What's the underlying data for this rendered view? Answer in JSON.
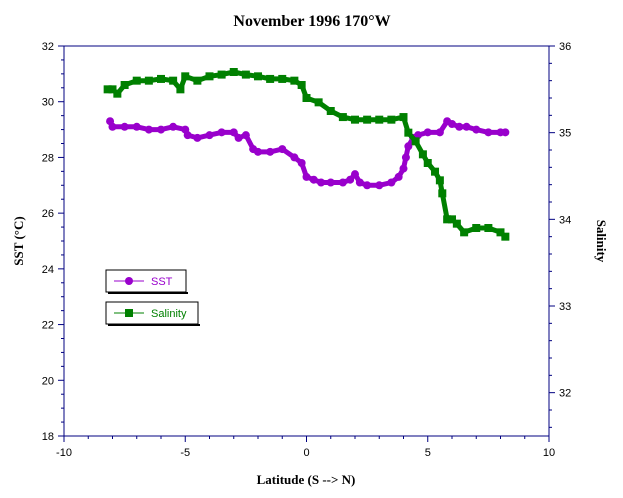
{
  "chart_data": {
    "type": "line",
    "title": "November 1996 170°W",
    "xlabel": "Latitude (S --> N)",
    "ylabel_left": "SST (°C)",
    "ylabel_right": "Salinity",
    "xlim": [
      -10,
      10
    ],
    "ylim_left": [
      18,
      32
    ],
    "ylim_right": [
      31.5,
      36
    ],
    "x_ticks": [
      "-10",
      "-5",
      "0",
      "5",
      "10"
    ],
    "y_ticks_left": [
      "18",
      "20",
      "22",
      "24",
      "26",
      "28",
      "30",
      "32"
    ],
    "y_ticks_right": [
      "32",
      "33",
      "34",
      "35",
      "36"
    ],
    "colors": {
      "sst": "#9900cc",
      "salinity": "#008000",
      "axis": "#000080"
    },
    "series": [
      {
        "name": "SST",
        "axis": "left",
        "x": [
          -8.1,
          -8.0,
          -7.5,
          -7.0,
          -6.5,
          -6.0,
          -5.5,
          -5.0,
          -4.9,
          -4.5,
          -4.0,
          -3.5,
          -3.0,
          -2.8,
          -2.5,
          -2.2,
          -2.0,
          -1.5,
          -1.0,
          -0.5,
          -0.2,
          0.0,
          0.3,
          0.6,
          1.0,
          1.5,
          1.8,
          2.0,
          2.2,
          2.5,
          3.0,
          3.5,
          3.8,
          4.0,
          4.1,
          4.2,
          4.4,
          4.6,
          5.0,
          5.5,
          5.8,
          6.0,
          6.3,
          6.6,
          7.0,
          7.5,
          8.0,
          8.2
        ],
        "values": [
          29.3,
          29.1,
          29.1,
          29.1,
          29.0,
          29.0,
          29.1,
          29.0,
          28.8,
          28.7,
          28.8,
          28.9,
          28.9,
          28.7,
          28.8,
          28.3,
          28.2,
          28.2,
          28.3,
          28.0,
          27.8,
          27.3,
          27.2,
          27.1,
          27.1,
          27.1,
          27.2,
          27.4,
          27.1,
          27.0,
          27.0,
          27.1,
          27.3,
          27.6,
          28.0,
          28.4,
          28.7,
          28.8,
          28.9,
          28.9,
          29.3,
          29.2,
          29.1,
          29.1,
          29.0,
          28.9,
          28.9,
          28.9
        ]
      },
      {
        "name": "Salinity",
        "axis": "right",
        "x": [
          -8.2,
          -8.0,
          -7.8,
          -7.5,
          -7.0,
          -6.5,
          -6.0,
          -5.5,
          -5.2,
          -5.0,
          -4.5,
          -4.0,
          -3.5,
          -3.0,
          -2.5,
          -2.0,
          -1.5,
          -1.0,
          -0.5,
          -0.2,
          0.0,
          0.5,
          1.0,
          1.5,
          2.0,
          2.5,
          3.0,
          3.5,
          4.0,
          4.2,
          4.5,
          4.8,
          5.0,
          5.3,
          5.5,
          5.6,
          5.8,
          6.0,
          6.2,
          6.5,
          7.0,
          7.5,
          8.0,
          8.2
        ],
        "values": [
          35.5,
          35.5,
          35.45,
          35.55,
          35.6,
          35.6,
          35.62,
          35.6,
          35.5,
          35.65,
          35.6,
          35.65,
          35.67,
          35.7,
          35.67,
          35.65,
          35.62,
          35.62,
          35.6,
          35.55,
          35.4,
          35.35,
          35.25,
          35.18,
          35.15,
          35.15,
          35.15,
          35.15,
          35.18,
          35.0,
          34.9,
          34.75,
          34.65,
          34.55,
          34.45,
          34.3,
          34.0,
          34.0,
          33.95,
          33.85,
          33.9,
          33.9,
          33.85,
          33.8
        ]
      }
    ],
    "legend": {
      "placement": "left-middle",
      "entries": [
        "SST",
        "Salinity"
      ]
    }
  }
}
